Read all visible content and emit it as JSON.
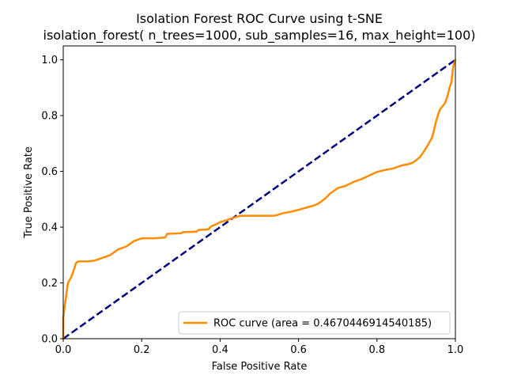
{
  "chart_data": {
    "type": "line",
    "title": "Isolation Forest ROC Curve using t-SNE",
    "subtitle": "isolation_forest( n_trees=1000, sub_samples=16, max_height=100)",
    "xlabel": "False Positive Rate",
    "ylabel": "True Positive Rate",
    "xlim": [
      0.0,
      1.0
    ],
    "ylim": [
      0.0,
      1.05
    ],
    "xticks": [
      "0.0",
      "0.2",
      "0.4",
      "0.6",
      "0.8",
      "1.0"
    ],
    "yticks": [
      "0.0",
      "0.2",
      "0.4",
      "0.6",
      "0.8",
      "1.0"
    ],
    "grid": false,
    "legend_position": "lower right",
    "series": [
      {
        "name": "ROC curve (area = 0.4670446914540185)",
        "color": "#ff8c00",
        "style": "solid",
        "x": [
          0.0,
          0.0,
          0.004,
          0.008,
          0.012,
          0.016,
          0.02,
          0.024,
          0.028,
          0.032,
          0.036,
          0.04,
          0.06,
          0.08,
          0.09,
          0.1,
          0.11,
          0.12,
          0.13,
          0.14,
          0.15,
          0.16,
          0.17,
          0.18,
          0.19,
          0.2,
          0.23,
          0.26,
          0.265,
          0.3,
          0.305,
          0.34,
          0.345,
          0.37,
          0.375,
          0.38,
          0.39,
          0.4,
          0.41,
          0.42,
          0.43,
          0.44,
          0.45,
          0.46,
          0.54,
          0.56,
          0.58,
          0.6,
          0.62,
          0.64,
          0.65,
          0.66,
          0.67,
          0.68,
          0.69,
          0.7,
          0.72,
          0.74,
          0.76,
          0.78,
          0.8,
          0.82,
          0.84,
          0.86,
          0.88,
          0.89,
          0.9,
          0.91,
          0.92,
          0.93,
          0.94,
          0.945,
          0.95,
          0.955,
          0.96,
          0.965,
          0.97,
          0.975,
          0.98,
          0.985,
          0.99,
          0.993,
          0.996,
          1.0
        ],
        "y": [
          0.0,
          0.075,
          0.12,
          0.16,
          0.2,
          0.21,
          0.22,
          0.235,
          0.25,
          0.27,
          0.275,
          0.277,
          0.277,
          0.28,
          0.285,
          0.29,
          0.295,
          0.3,
          0.31,
          0.32,
          0.325,
          0.33,
          0.34,
          0.35,
          0.355,
          0.36,
          0.36,
          0.363,
          0.376,
          0.378,
          0.382,
          0.384,
          0.39,
          0.392,
          0.4,
          0.405,
          0.41,
          0.418,
          0.422,
          0.427,
          0.432,
          0.436,
          0.44,
          0.441,
          0.441,
          0.45,
          0.455,
          0.462,
          0.47,
          0.478,
          0.484,
          0.494,
          0.505,
          0.52,
          0.53,
          0.54,
          0.548,
          0.562,
          0.572,
          0.585,
          0.598,
          0.605,
          0.61,
          0.62,
          0.626,
          0.63,
          0.64,
          0.652,
          0.672,
          0.695,
          0.72,
          0.745,
          0.775,
          0.8,
          0.82,
          0.83,
          0.838,
          0.85,
          0.87,
          0.9,
          0.92,
          0.96,
          0.985,
          1.0
        ]
      },
      {
        "name": "",
        "color": "#000080",
        "style": "dashed",
        "x": [
          0.0,
          1.0
        ],
        "y": [
          0.0,
          1.0
        ]
      }
    ]
  }
}
